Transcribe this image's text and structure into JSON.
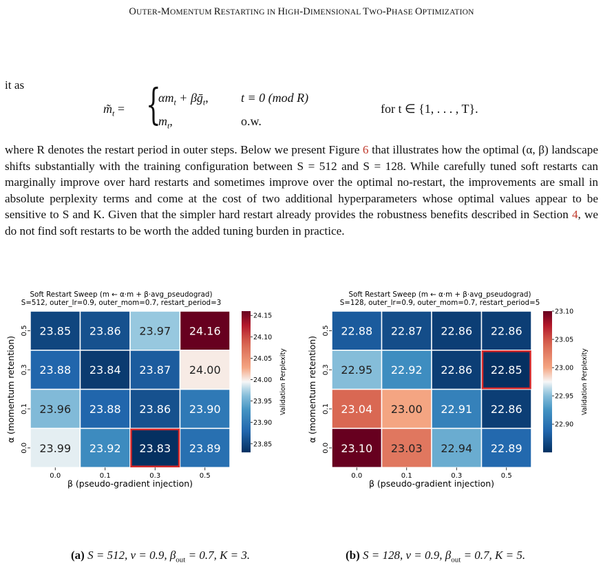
{
  "header": {
    "title_parts": [
      {
        "big": "O",
        "small": "UTER"
      },
      {
        "big": "-M",
        "small": "OMENTUM "
      },
      {
        "big": "R",
        "small": "ESTARTING IN "
      },
      {
        "big": "H",
        "small": "IGH"
      },
      {
        "big": "-D",
        "small": "IMENSIONAL "
      },
      {
        "big": "T",
        "small": "WO"
      },
      {
        "big": "-P",
        "small": "HASE "
      },
      {
        "big": "O",
        "small": "PTIMIZATION"
      }
    ]
  },
  "text": {
    "lead": "it as",
    "eq_lhs": "m̃",
    "eq_case1": "αm",
    "eq_case1b": " + βḡ",
    "eq_cond1": "t ≡ 0   (mod R)",
    "eq_case2": "m",
    "eq_cond2": "o.w.",
    "eq_for": "for t ∈ {1, . . . , T}.",
    "para_a": "where R denotes the restart period in outer steps. Below we present Figure ",
    "fig_ref": "6",
    "para_b": " that illustrates how the optimal (α, β) landscape shifts substantially with the training configuration between S = 512 and S = 128. While carefully tuned soft restarts can marginally improve over hard restarts and sometimes improve over the optimal no-restart, the improvements are small in absolute perplexity terms and come at the cost of two additional hyperparameters whose optimal values appear to be sensitive to S and K. Given that the simpler hard restart already provides the robustness benefits described in Section ",
    "sec_ref": "4",
    "para_c": ", we do not find soft restarts to be worth the added tuning burden in practice."
  },
  "colors": {
    "accent_link": "#c0392b",
    "highlight": "#d62728"
  },
  "figures": [
    {
      "title_line1": "Soft Restart Sweep  (m ← α·m + β·avg_pseudograd)",
      "title_line2": "S=512, outer_lr=0.9, outer_mom=0.7, restart_period=3",
      "caption_label": "(a)",
      "caption_text": "S = 512, ν = 0.9, β",
      "caption_sub": "out",
      "caption_tail": " = 0.7, K = 3."
    },
    {
      "title_line1": "Soft Restart Sweep  (m ← α·m + β·avg_pseudograd)",
      "title_line2": "S=128, outer_lr=0.9, outer_mom=0.7, restart_period=5",
      "caption_label": "(b)",
      "caption_text": "S = 128, ν = 0.9, β",
      "caption_sub": "out",
      "caption_tail": " = 0.7, K = 5."
    }
  ],
  "chart_data": [
    {
      "type": "heatmap",
      "title": "Soft Restart Sweep  (m ← α·m + β·avg_pseudograd)\nS=512, outer_lr=0.9, outer_mom=0.7, restart_period=3",
      "xlabel": "β  (pseudo-gradient injection)",
      "ylabel": "α  (momentum retention)",
      "x": [
        "0.0",
        "0.1",
        "0.3",
        "0.5"
      ],
      "y": [
        "0.5",
        "0.3",
        "0.1",
        "0.0"
      ],
      "values": [
        [
          23.85,
          23.86,
          23.97,
          24.16
        ],
        [
          23.88,
          23.84,
          23.87,
          24.0
        ],
        [
          23.96,
          23.88,
          23.86,
          23.9
        ],
        [
          23.99,
          23.92,
          23.83,
          23.89
        ]
      ],
      "highlight": {
        "row": 3,
        "col": 2
      },
      "colorbar_label": "Validation Perplexity",
      "colorbar_ticks": [
        23.85,
        23.9,
        23.95,
        24.0,
        24.05,
        24.1,
        24.15
      ],
      "vrange": [
        23.83,
        24.16
      ]
    },
    {
      "type": "heatmap",
      "title": "Soft Restart Sweep  (m ← α·m + β·avg_pseudograd)\nS=128, outer_lr=0.9, outer_mom=0.7, restart_period=5",
      "xlabel": "β  (pseudo-gradient injection)",
      "ylabel": "α  (momentum retention)",
      "x": [
        "0.0",
        "0.1",
        "0.3",
        "0.5"
      ],
      "y": [
        "0.5",
        "0.3",
        "0.1",
        "0.0"
      ],
      "values": [
        [
          22.88,
          22.87,
          22.86,
          22.86
        ],
        [
          22.95,
          22.92,
          22.86,
          22.85
        ],
        [
          23.04,
          23.0,
          22.91,
          22.86
        ],
        [
          23.1,
          23.03,
          22.94,
          22.89
        ]
      ],
      "highlight": {
        "row": 1,
        "col": 3
      },
      "colorbar_label": "Validation Perplexity",
      "colorbar_ticks": [
        22.9,
        22.95,
        23.0,
        23.05,
        23.1
      ],
      "vrange": [
        22.85,
        23.1
      ]
    }
  ]
}
